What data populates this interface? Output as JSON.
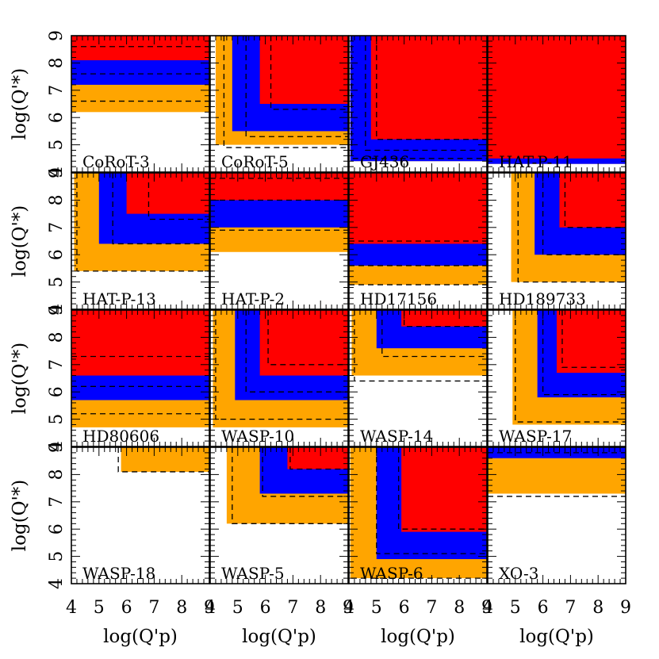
{
  "chart_data": {
    "type": "heatmap",
    "grid": "4x4 small multiples",
    "xlabel": "log(Q'p)",
    "ylabel": "log(Q'*)",
    "xlim": [
      4,
      9
    ],
    "ylim": [
      4,
      9
    ],
    "xtick_labels": [
      "4",
      "5",
      "6",
      "7",
      "8",
      "9"
    ],
    "ytick_labels": [
      "4",
      "5",
      "6",
      "7",
      "8",
      "9"
    ],
    "region_colors": {
      "outer": "#FFA500",
      "middle": "#0000FF",
      "inner": "#FF0000"
    },
    "panels": [
      {
        "name": "CoRoT-3",
        "type": "horizontal",
        "x": [
          4,
          4,
          4
        ],
        "y": [
          6.2,
          7.2,
          8.1
        ],
        "dash": [
          6.6,
          7.6,
          8.6
        ]
      },
      {
        "name": "CoRoT-5",
        "type": "corner",
        "x": [
          4.2,
          4.8,
          5.8
        ],
        "y": [
          5.0,
          5.5,
          6.5
        ],
        "dash_x": [
          4.5,
          5.3,
          6.2
        ],
        "dash_y": [
          4.9,
          5.3,
          6.3
        ]
      },
      {
        "name": "GJ436",
        "type": "corner",
        "x": [
          4.05,
          4.05,
          4.8
        ],
        "y": [
          4.4,
          4.4,
          5.2
        ],
        "dash_x": [
          4.1,
          4.6,
          5.0
        ],
        "dash_y": [
          4.5,
          4.8,
          5.2
        ]
      },
      {
        "name": "HAT-P-11",
        "type": "corner",
        "x": [
          4,
          4,
          4
        ],
        "y": [
          4.3,
          4.3,
          4.5
        ],
        "dash_x": [],
        "dash_y": []
      },
      {
        "name": "HAT-P-13",
        "type": "corner",
        "x": [
          4.1,
          5.0,
          6.0
        ],
        "y": [
          5.4,
          6.4,
          7.5
        ],
        "dash_x": [
          4.2,
          5.5,
          6.8
        ],
        "dash_y": [
          5.4,
          6.4,
          7.3
        ]
      },
      {
        "name": "HAT-P-2",
        "type": "horizontal",
        "x": [
          4,
          4,
          4
        ],
        "y": [
          6.1,
          7.0,
          8.0
        ],
        "dash": [
          6.9,
          8.0,
          8.8
        ]
      },
      {
        "name": "HD17156",
        "type": "horizontal",
        "x": [
          4,
          4,
          4
        ],
        "y": [
          4.9,
          5.6,
          6.4
        ],
        "dash": [
          4.9,
          5.6,
          6.5
        ]
      },
      {
        "name": "HD189733",
        "type": "corner",
        "x": [
          4.85,
          5.7,
          6.6
        ],
        "y": [
          5.0,
          6.0,
          7.0
        ],
        "dash_x": [
          5.1,
          6.0,
          6.8
        ],
        "dash_y": [
          5.0,
          6.0,
          7.0
        ]
      },
      {
        "name": "HD80606",
        "type": "horizontal",
        "x": [
          4,
          4,
          4
        ],
        "y": [
          4.7,
          5.7,
          6.6
        ],
        "dash": [
          5.2,
          6.2,
          7.3
        ]
      },
      {
        "name": "WASP-10",
        "type": "corner",
        "x": [
          4.1,
          4.9,
          5.8
        ],
        "y": [
          4.7,
          5.7,
          6.6
        ],
        "dash_x": [
          4.2,
          5.3,
          6.1
        ],
        "dash_y": [
          5.0,
          6.0,
          7.0
        ]
      },
      {
        "name": "WASP-14",
        "type": "corner",
        "x": [
          4.1,
          5.0,
          5.9
        ],
        "y": [
          6.6,
          7.6,
          8.4
        ],
        "dash_x": [
          4.2,
          5.2,
          6.0
        ],
        "dash_y": [
          6.4,
          7.3,
          8.4
        ]
      },
      {
        "name": "WASP-17",
        "type": "corner",
        "x": [
          4.9,
          5.8,
          6.5
        ],
        "y": [
          4.8,
          5.8,
          6.7
        ],
        "dash_x": [
          5.0,
          6.0,
          6.7
        ],
        "dash_y": [
          4.9,
          5.9,
          6.9
        ]
      },
      {
        "name": "WASP-18",
        "type": "corner",
        "x": [
          5.8,
          9.2,
          9.2
        ],
        "y": [
          8.1,
          9.2,
          9.2
        ],
        "dash_x": [
          5.7
        ],
        "dash_y": [
          8.1
        ]
      },
      {
        "name": "WASP-5",
        "type": "corner",
        "x": [
          4.6,
          5.8,
          6.8
        ],
        "y": [
          6.2,
          7.3,
          8.2
        ],
        "dash_x": [
          4.8,
          5.9,
          6.9
        ],
        "dash_y": [
          6.2,
          7.2,
          8.2
        ]
      },
      {
        "name": "WASP-6",
        "type": "corner",
        "x": [
          4.05,
          5.0,
          5.9
        ],
        "y": [
          4.2,
          4.9,
          5.9
        ],
        "dash_x": [
          4.0,
          5.0,
          5.8
        ],
        "dash_y": [
          4.2,
          5.1,
          6.0
        ]
      },
      {
        "name": "XO-3",
        "type": "horizontal",
        "x": [
          4,
          4,
          4
        ],
        "y": [
          7.3,
          8.6,
          9.2
        ],
        "dash": [
          7.2,
          8.8
        ]
      }
    ]
  }
}
